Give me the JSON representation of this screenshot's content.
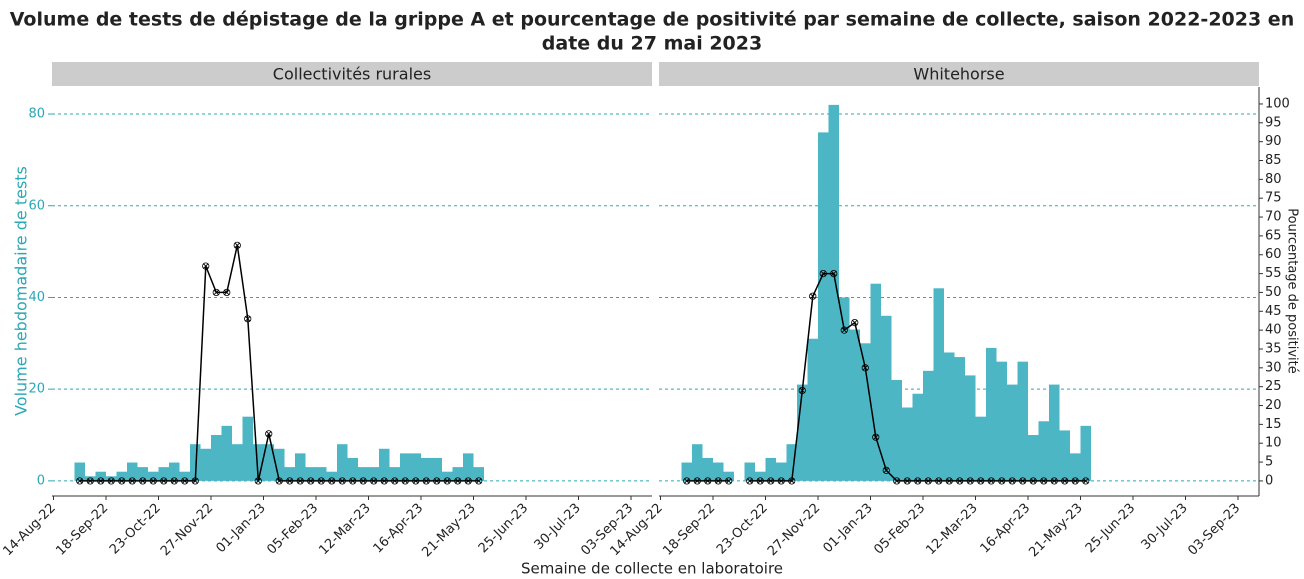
{
  "chart_data": {
    "type": "bar",
    "title": "Volume de tests de dépistage de la grippe A et pourcentage de positivité par semaine de collecte, saison 2022-2023 en",
    "subtitle": "date du 27 mai 2023",
    "x_label": "Semaine de collecte en laboratoire",
    "y_label": "Volume hebdomadaire de tests",
    "y2_label": "Pourcentage de positivité",
    "x": [
      "2022-08-28",
      "2022-09-04",
      "2022-09-11",
      "2022-09-18",
      "2022-09-25",
      "2022-10-02",
      "2022-10-09",
      "2022-10-16",
      "2022-10-23",
      "2022-10-30",
      "2022-11-06",
      "2022-11-13",
      "2022-11-20",
      "2022-11-27",
      "2022-12-04",
      "2022-12-11",
      "2022-12-18",
      "2022-12-25",
      "2023-01-01",
      "2023-01-08",
      "2023-01-15",
      "2023-01-22",
      "2023-01-29",
      "2023-02-05",
      "2023-02-12",
      "2023-02-19",
      "2023-02-26",
      "2023-03-05",
      "2023-03-12",
      "2023-03-19",
      "2023-03-26",
      "2023-04-02",
      "2023-04-09",
      "2023-04-16",
      "2023-04-23",
      "2023-04-30",
      "2023-05-07",
      "2023-05-14",
      "2023-05-21"
    ],
    "xlim": [
      "2022-08-13",
      "2023-09-17"
    ],
    "xticks": [
      {
        "value": "2022-08-14",
        "label": "14-Aug-22"
      },
      {
        "value": "2022-09-18",
        "label": "18-Sep-22"
      },
      {
        "value": "2022-10-23",
        "label": "23-Oct-22"
      },
      {
        "value": "2022-11-27",
        "label": "27-Nov-22"
      },
      {
        "value": "2023-01-01",
        "label": "01-Jan-23"
      },
      {
        "value": "2023-02-05",
        "label": "05-Feb-23"
      },
      {
        "value": "2023-03-12",
        "label": "12-Mar-23"
      },
      {
        "value": "2023-04-16",
        "label": "16-Apr-23"
      },
      {
        "value": "2023-05-21",
        "label": "21-May-23"
      },
      {
        "value": "2023-06-25",
        "label": "25-Jun-23"
      },
      {
        "value": "2023-07-30",
        "label": "30-Jul-23"
      },
      {
        "value": "2023-09-03",
        "label": "03-Sep-23"
      }
    ],
    "ylim": [
      -3.3,
      85.9
    ],
    "yticks": [
      0,
      20,
      40,
      60,
      80
    ],
    "y2lim": [
      -4,
      104.5
    ],
    "y2ticks": [
      0,
      5,
      10,
      15,
      20,
      25,
      30,
      35,
      40,
      45,
      50,
      55,
      60,
      65,
      70,
      75,
      80,
      85,
      90,
      95,
      100
    ],
    "grid": true,
    "bar_color": "#4db6c4",
    "line_color": "#000000",
    "axis_color": "#2aa8b5",
    "panels": [
      {
        "title": "Collectivités rurales",
        "series": [
          {
            "type": "bar",
            "values": [
              4,
              1,
              2,
              1,
              2,
              4,
              3,
              2,
              3,
              4,
              2,
              8,
              7,
              10,
              12,
              8,
              14,
              8,
              8,
              7,
              3,
              6,
              3,
              3,
              2,
              8,
              5,
              3,
              3,
              7,
              3,
              6,
              6,
              5,
              5,
              2,
              3,
              6,
              3
            ]
          },
          {
            "type": "line",
            "axis": "y2",
            "values": [
              0,
              0,
              0,
              0,
              0,
              0,
              0,
              0,
              0,
              0,
              0,
              0,
              57,
              50,
              50,
              62.5,
              43,
              0,
              12.5,
              0,
              0,
              0,
              0,
              0,
              0,
              0,
              0,
              0,
              0,
              0,
              0,
              0,
              0,
              0,
              0,
              0,
              0,
              0,
              0
            ]
          }
        ]
      },
      {
        "title": "Whitehorse",
        "series": [
          {
            "type": "bar",
            "values": [
              4,
              8,
              5,
              4,
              2,
              null,
              4,
              2,
              5,
              4,
              8,
              21,
              31,
              76,
              82,
              40,
              33,
              30,
              43,
              36,
              22,
              16,
              19,
              24,
              42,
              28,
              27,
              23,
              14,
              29,
              26,
              21,
              26,
              10,
              13,
              21,
              11,
              6,
              12
            ]
          },
          {
            "type": "line",
            "axis": "y2",
            "values": [
              0,
              0,
              0,
              0,
              0,
              null,
              0,
              0,
              0,
              0,
              0,
              24,
              49,
              55,
              55,
              40,
              42,
              30,
              11.6,
              2.8,
              0,
              0,
              0,
              0,
              0,
              0,
              0,
              0,
              0,
              0,
              0,
              0,
              0,
              0,
              0,
              0,
              0,
              0,
              0
            ]
          }
        ]
      }
    ]
  }
}
